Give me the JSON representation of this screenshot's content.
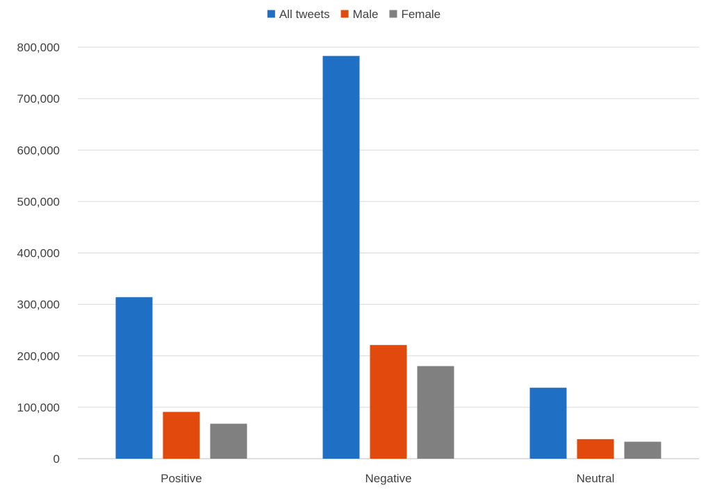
{
  "chart_data": {
    "type": "bar",
    "title": "",
    "xlabel": "",
    "ylabel": "",
    "categories": [
      "Positive",
      "Negative",
      "Neutral"
    ],
    "series": [
      {
        "name": "All tweets",
        "color": "#1f6fc5",
        "values": [
          314000,
          783000,
          138000
        ]
      },
      {
        "name": "Male",
        "color": "#e2490d",
        "values": [
          91000,
          221000,
          38000
        ]
      },
      {
        "name": "Female",
        "color": "#808080",
        "values": [
          68000,
          180000,
          33000
        ]
      }
    ],
    "ylim": [
      0,
      800000
    ],
    "yticks": [
      0,
      100000,
      200000,
      300000,
      400000,
      500000,
      600000,
      700000,
      800000
    ],
    "ytick_labels": [
      "0",
      "100,000",
      "200,000",
      "300,000",
      "400,000",
      "500,000",
      "600,000",
      "700,000",
      "800,000"
    ],
    "grid": true,
    "legend_position": "top-center"
  }
}
